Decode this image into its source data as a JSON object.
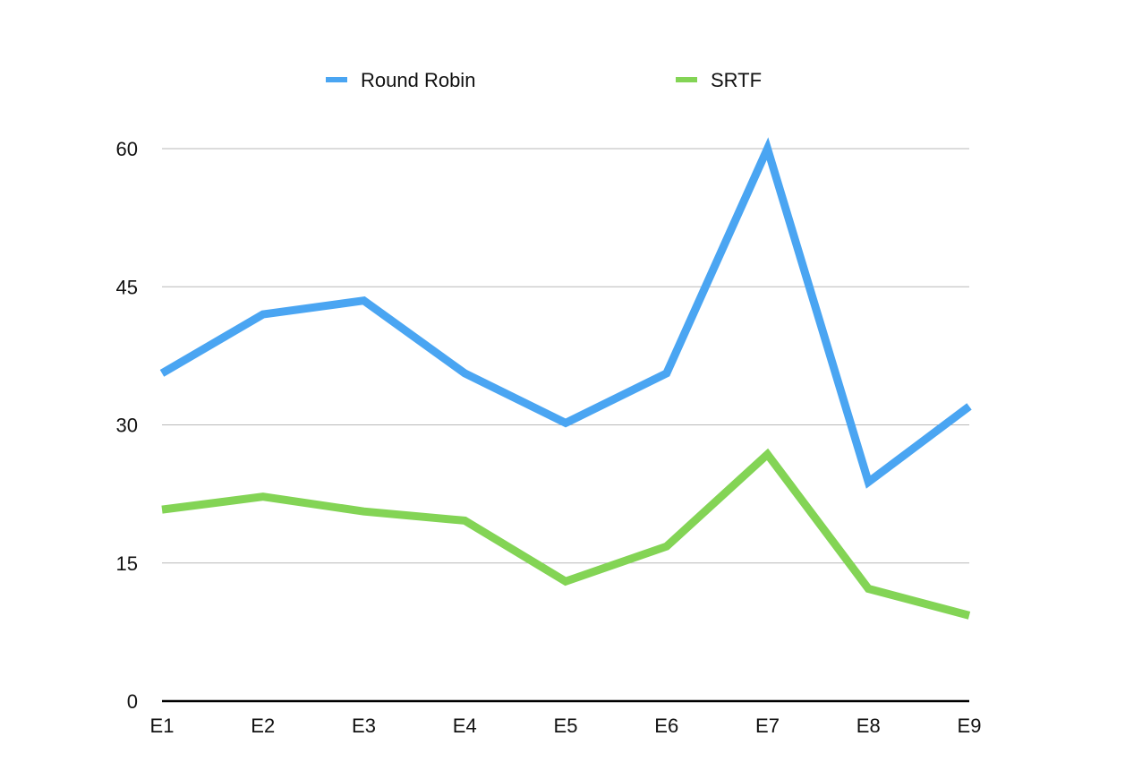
{
  "chart_data": {
    "type": "line",
    "categories": [
      "E1",
      "E2",
      "E3",
      "E4",
      "E5",
      "E6",
      "E7",
      "E8",
      "E9"
    ],
    "series": [
      {
        "name": "Round Robin",
        "color": "#4aa5f2",
        "values": [
          35.6,
          42.0,
          43.5,
          35.6,
          30.2,
          35.6,
          60.0,
          23.8,
          32.0
        ]
      },
      {
        "name": "SRTF",
        "color": "#83d455",
        "values": [
          20.8,
          22.2,
          20.6,
          19.6,
          13.0,
          16.8,
          26.8,
          12.2,
          9.3
        ]
      }
    ],
    "yticks": [
      "0",
      "15",
      "30",
      "45",
      "60"
    ],
    "ylim": [
      0,
      60
    ],
    "grid": true,
    "legend_position": "top"
  }
}
